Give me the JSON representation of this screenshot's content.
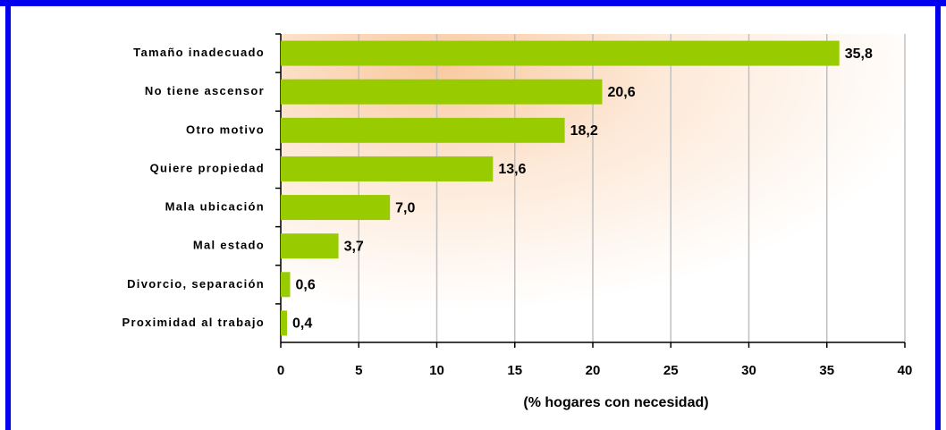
{
  "chart_data": {
    "type": "bar",
    "orientation": "horizontal",
    "xlabel": "(% hogares con necesidad)",
    "categories": [
      "Tamaño inadecuado",
      "No tiene ascensor",
      "Otro motivo",
      "Quiere propiedad",
      "Mala ubicación",
      "Mal estado",
      "Divorcio, separación",
      "Proximidad al trabajo"
    ],
    "values": [
      35.8,
      20.6,
      18.2,
      13.6,
      7.0,
      3.7,
      0.6,
      0.4
    ],
    "value_labels": [
      "35,8",
      "20,6",
      "18,2",
      "13,6",
      "7,0",
      "3,7",
      "0,6",
      "0,4"
    ],
    "color": "#99cc00",
    "xlim": [
      0,
      40
    ],
    "xticks": [
      0,
      5,
      10,
      15,
      20,
      25,
      30,
      35,
      40
    ],
    "grid": true
  }
}
